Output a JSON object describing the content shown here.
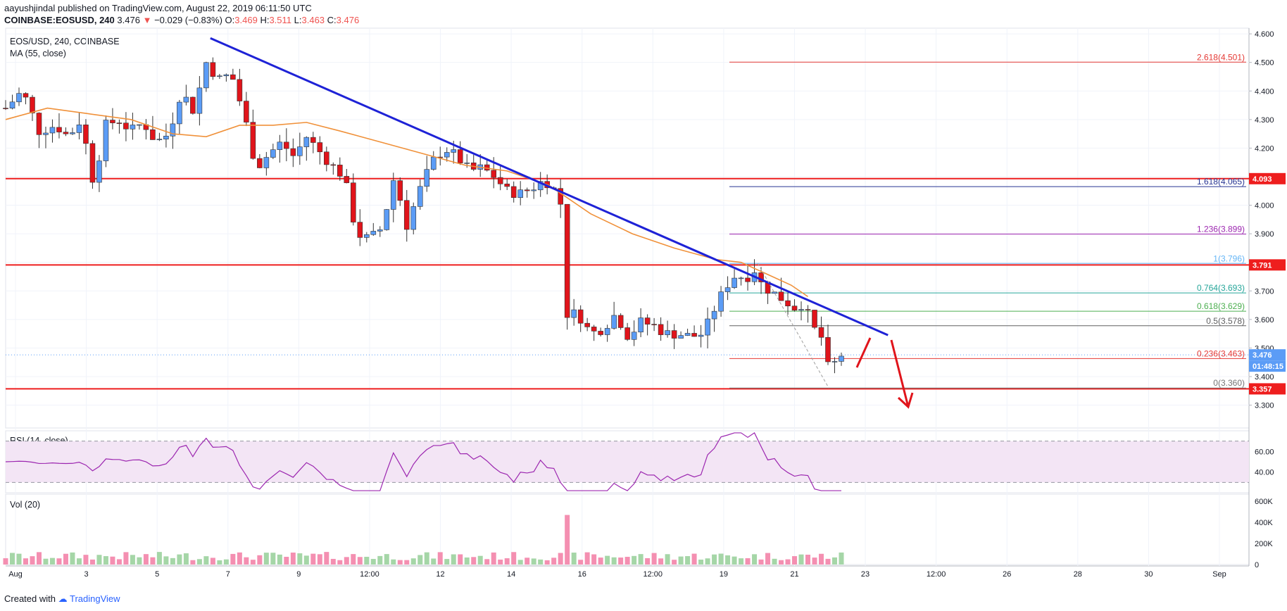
{
  "header": {
    "author": "aayushjindal",
    "published_text": "published on TradingView.com, August 22, 2019 06:11:50 UTC",
    "symbol": "COINBASE:EOSUSD, 240",
    "last": "3.476",
    "change_arrow": "▼",
    "change": "−0.029 (−0.83%)",
    "o_label": "O:",
    "o": "3.469",
    "h_label": "H:",
    "h": "3.511",
    "l_label": "L:",
    "l": "3.463",
    "c_label": "C:",
    "c": "3.476"
  },
  "legend": {
    "pair": "EOS/USD, 240, COINBASE",
    "ma": "MA (55, close)",
    "rsi": "RSI (14, close)",
    "vol": "Vol (20)"
  },
  "footer": {
    "created_with": "Created with",
    "brand": "TradingView"
  },
  "colors": {
    "up": "#5b9cf6",
    "down": "#e0141b",
    "ma": "#f0913a",
    "trend": "#1e22d6",
    "level": "#ee1e1e",
    "rsi": "#9c27b0",
    "rsi_fill": "#f3e5f5",
    "vol_up": "#a5d6a7",
    "vol_down": "#f48fb1"
  },
  "chart_data": {
    "type": "candlestick",
    "title": "EOS/USD, 240, COINBASE",
    "ylim": [
      3.22,
      4.62
    ],
    "y_ticks": [
      "4.600",
      "4.500",
      "4.400",
      "4.300",
      "4.200",
      "4.100",
      "4.000",
      "3.900",
      "3.800",
      "3.700",
      "3.600",
      "3.500",
      "3.400",
      "3.300"
    ],
    "x_tick_labels": [
      "Aug",
      "3",
      "5",
      "7",
      "9",
      "12:00",
      "12",
      "14",
      "16",
      "12:00",
      "19",
      "21",
      "23",
      "12:00",
      "26",
      "28",
      "30",
      "Sep"
    ],
    "horizontal_levels": [
      {
        "value": 4.093,
        "label": "4.093"
      },
      {
        "value": 3.791,
        "label": "3.791"
      },
      {
        "value": 3.357,
        "label": "3.357"
      }
    ],
    "last_price": {
      "value": 3.476,
      "label": "3.476",
      "countdown": "01:48:15"
    },
    "fibonacci": [
      {
        "ratio": "2.618",
        "value": 4.501,
        "label": "2.618(4.501)",
        "color": "#e53935"
      },
      {
        "ratio": "1.618",
        "value": 4.065,
        "label": "1.618(4.065)",
        "color": "#283593"
      },
      {
        "ratio": "1.236",
        "value": 3.899,
        "label": "1.236(3.899)",
        "color": "#9c27b0"
      },
      {
        "ratio": "1",
        "value": 3.796,
        "label": "1(3.796)",
        "color": "#64b5f6"
      },
      {
        "ratio": "0.764",
        "value": 3.693,
        "label": "0.764(3.693)",
        "color": "#26a69a"
      },
      {
        "ratio": "0.618",
        "value": 3.629,
        "label": "0.618(3.629)",
        "color": "#4caf50"
      },
      {
        "ratio": "0.5",
        "value": 3.578,
        "label": "0.5(3.578)",
        "color": "#616161"
      },
      {
        "ratio": "0.236",
        "value": 3.463,
        "label": "0.236(3.463)",
        "color": "#e53935"
      },
      {
        "ratio": "0",
        "value": 3.36,
        "label": "0(3.360)",
        "color": "#757575"
      }
    ],
    "trendline": [
      [
        0.245,
        4.585
      ],
      [
        0.98,
        3.545
      ]
    ],
    "close_path": [
      [
        0.0,
        4.34
      ],
      [
        0.02,
        4.4
      ],
      [
        0.04,
        4.26
      ],
      [
        0.06,
        4.28
      ],
      [
        0.075,
        4.24
      ],
      [
        0.09,
        4.3
      ],
      [
        0.105,
        4.08
      ],
      [
        0.12,
        4.28
      ],
      [
        0.135,
        4.3
      ],
      [
        0.15,
        4.26
      ],
      [
        0.165,
        4.29
      ],
      [
        0.18,
        4.22
      ],
      [
        0.195,
        4.25
      ],
      [
        0.21,
        4.4
      ],
      [
        0.225,
        4.33
      ],
      [
        0.24,
        4.5
      ],
      [
        0.255,
        4.44
      ],
      [
        0.27,
        4.46
      ],
      [
        0.285,
        4.32
      ],
      [
        0.3,
        4.13
      ],
      [
        0.315,
        4.18
      ],
      [
        0.33,
        4.22
      ],
      [
        0.345,
        4.17
      ],
      [
        0.36,
        4.24
      ],
      [
        0.375,
        4.19
      ],
      [
        0.39,
        4.14
      ],
      [
        0.405,
        4.1
      ],
      [
        0.42,
        3.9
      ],
      [
        0.435,
        3.88
      ],
      [
        0.45,
        3.92
      ],
      [
        0.465,
        4.1
      ],
      [
        0.48,
        3.93
      ],
      [
        0.495,
        4.05
      ],
      [
        0.51,
        4.15
      ],
      [
        0.525,
        4.2
      ],
      [
        0.54,
        4.17
      ],
      [
        0.555,
        4.12
      ],
      [
        0.57,
        4.13
      ],
      [
        0.585,
        4.1
      ],
      [
        0.6,
        4.05
      ],
      [
        0.615,
        4.04
      ],
      [
        0.63,
        4.06
      ],
      [
        0.645,
        4.09
      ],
      [
        0.655,
        4.06
      ],
      [
        0.665,
        4.0
      ],
      [
        0.672,
        3.62
      ],
      [
        0.685,
        3.62
      ],
      [
        0.7,
        3.55
      ],
      [
        0.715,
        3.57
      ],
      [
        0.73,
        3.62
      ],
      [
        0.745,
        3.54
      ],
      [
        0.76,
        3.59
      ],
      [
        0.775,
        3.58
      ],
      [
        0.79,
        3.55
      ],
      [
        0.805,
        3.55
      ],
      [
        0.82,
        3.54
      ],
      [
        0.835,
        3.55
      ],
      [
        0.85,
        3.65
      ],
      [
        0.865,
        3.73
      ],
      [
        0.875,
        3.76
      ],
      [
        0.885,
        3.74
      ],
      [
        0.895,
        3.78
      ],
      [
        0.905,
        3.72
      ],
      [
        0.915,
        3.7
      ],
      [
        0.925,
        3.68
      ],
      [
        0.935,
        3.66
      ],
      [
        0.945,
        3.64
      ],
      [
        0.955,
        3.66
      ],
      [
        0.965,
        3.57
      ],
      [
        0.975,
        3.55
      ],
      [
        0.985,
        3.42
      ],
      [
        1.0,
        3.476
      ]
    ],
    "ma_path": [
      [
        0.0,
        4.3
      ],
      [
        0.05,
        4.34
      ],
      [
        0.1,
        4.32
      ],
      [
        0.15,
        4.3
      ],
      [
        0.2,
        4.25
      ],
      [
        0.24,
        4.24
      ],
      [
        0.28,
        4.28
      ],
      [
        0.32,
        4.28
      ],
      [
        0.36,
        4.29
      ],
      [
        0.4,
        4.26
      ],
      [
        0.45,
        4.22
      ],
      [
        0.5,
        4.18
      ],
      [
        0.55,
        4.14
      ],
      [
        0.6,
        4.12
      ],
      [
        0.65,
        4.07
      ],
      [
        0.7,
        3.97
      ],
      [
        0.75,
        3.9
      ],
      [
        0.8,
        3.85
      ],
      [
        0.85,
        3.81
      ],
      [
        0.88,
        3.8
      ],
      [
        0.91,
        3.76
      ],
      [
        0.94,
        3.72
      ],
      [
        0.96,
        3.68
      ]
    ],
    "rsi": {
      "label": "RSI (14, close)",
      "levels": [
        70,
        30
      ],
      "ticks": [
        "60.00",
        "40.00"
      ],
      "ylim": [
        20,
        80
      ]
    },
    "volume": {
      "label": "Vol (20)",
      "ticks": [
        "600K",
        "400K",
        "200K",
        "0"
      ],
      "ylim": [
        0,
        600000
      ]
    }
  }
}
